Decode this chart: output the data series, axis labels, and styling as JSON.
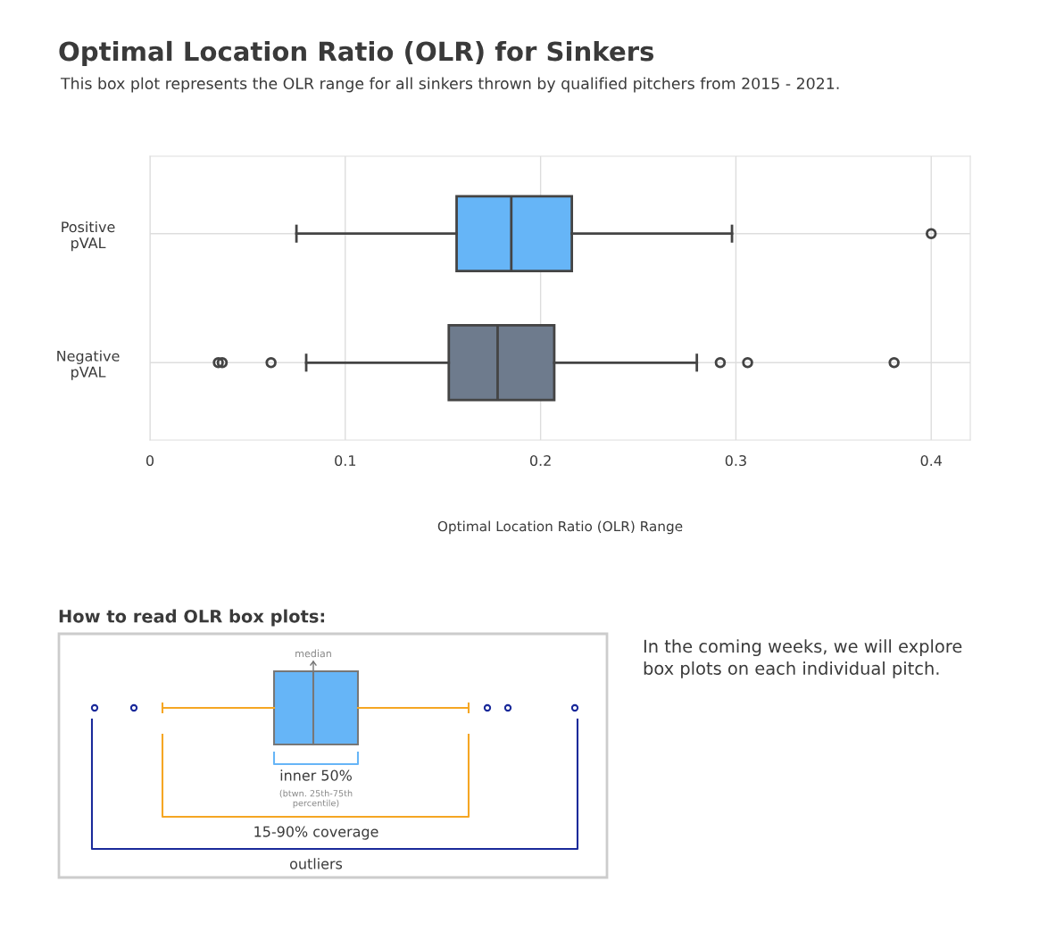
{
  "chart_data": {
    "type": "box",
    "orientation": "horizontal",
    "title": "Optimal Location Ratio (OLR) for Sinkers",
    "subtitle": "This box plot represents the OLR range for all sinkers thrown by qualified pitchers from 2015 - 2021.",
    "xlabel": "Optimal Location Ratio (OLR) Range",
    "categories": [
      "Positive\npVAL",
      "Negative\npVAL"
    ],
    "colors": [
      "#66b5f7",
      "#6e7b8d"
    ],
    "boxes": [
      {
        "low": 0.075,
        "q1": 0.157,
        "median": 0.185,
        "q3": 0.216,
        "high": 0.298,
        "outliers": [
          0.4
        ]
      },
      {
        "low": 0.08,
        "q1": 0.153,
        "median": 0.178,
        "q3": 0.207,
        "high": 0.28,
        "outliers": [
          0.035,
          0.037,
          0.062,
          0.292,
          0.306,
          0.381
        ]
      }
    ],
    "xlim": [
      0,
      0.42
    ],
    "xticks": [
      0,
      0.1,
      0.2,
      0.3,
      0.4
    ],
    "grid": true,
    "annotations": [
      "How to read OLR box plots:",
      "median",
      "inner 50%",
      "(btwn. 25th-75th\npercentile)",
      "15-90% coverage",
      "outliers",
      "In the coming weeks, we will explore\nbox plots on each individual pitch."
    ]
  }
}
